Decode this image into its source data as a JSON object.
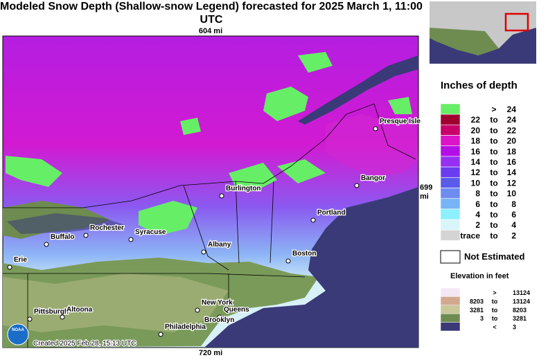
{
  "title": "Modeled Snow Depth (Shallow-snow Legend) forecasted for 2025 March 1, 11:00 UTC",
  "scale": {
    "top": "604 mi",
    "right": "699 mi",
    "bottom": "720 mi"
  },
  "cities": [
    {
      "label": "Presque Isle"
    },
    {
      "label": "Burlington"
    },
    {
      "label": "Bangor"
    },
    {
      "label": "Portland"
    },
    {
      "label": "Rochester"
    },
    {
      "label": "Syracuse"
    },
    {
      "label": "Buffalo"
    },
    {
      "label": "Albany"
    },
    {
      "label": "Boston"
    },
    {
      "label": "Erie"
    },
    {
      "label": "New York"
    },
    {
      "label": "Queens"
    },
    {
      "label": "Brooklyn"
    },
    {
      "label": "Pittsburgh"
    },
    {
      "label": "Altoona"
    },
    {
      "label": "Philadelphia"
    }
  ],
  "credit": "Created 2025 Feb 28, 15:13 UTC",
  "logo": "NOAA",
  "legend": {
    "title": "Inches of depth",
    "items": [
      {
        "sep": ">",
        "upper": "24",
        "color": "#66ee66"
      },
      {
        "lower": "22",
        "sep": "to",
        "upper": "24",
        "color": "#a00030"
      },
      {
        "lower": "20",
        "sep": "to",
        "upper": "22",
        "color": "#c8006a"
      },
      {
        "lower": "18",
        "sep": "to",
        "upper": "20",
        "color": "#dc14c8"
      },
      {
        "lower": "16",
        "sep": "to",
        "upper": "18",
        "color": "#b40ee6"
      },
      {
        "lower": "14",
        "sep": "to",
        "upper": "16",
        "color": "#962ff0"
      },
      {
        "lower": "12",
        "sep": "to",
        "upper": "14",
        "color": "#6a3cf0"
      },
      {
        "lower": "10",
        "sep": "to",
        "upper": "12",
        "color": "#5a5aeb"
      },
      {
        "lower": "8",
        "sep": "to",
        "upper": "10",
        "color": "#6e8cf0"
      },
      {
        "lower": "6",
        "sep": "to",
        "upper": "8",
        "color": "#78b4f5"
      },
      {
        "lower": "4",
        "sep": "to",
        "upper": "6",
        "color": "#8cf0ff"
      },
      {
        "lower": "2",
        "sep": "to",
        "upper": "4",
        "color": "#d8f6fa"
      },
      {
        "lower": "trace",
        "sep": "to",
        "upper": "2",
        "color": "#d4d4d4"
      }
    ],
    "not_estimated": "Not Estimated"
  },
  "elevation": {
    "title": "Elevation in feet",
    "items": [
      {
        "sep": ">",
        "upper": "13124",
        "color": "#f4e8f4"
      },
      {
        "lower": "8203",
        "sep": "to",
        "upper": "13124",
        "color": "#d2a890"
      },
      {
        "lower": "3281",
        "sep": "to",
        "upper": "8203",
        "color": "#c8c89a"
      },
      {
        "lower": "3",
        "sep": "to",
        "upper": "3281",
        "color": "#6e8c50"
      },
      {
        "sep": "<",
        "upper": "3",
        "color": "#3a3a78"
      }
    ]
  }
}
